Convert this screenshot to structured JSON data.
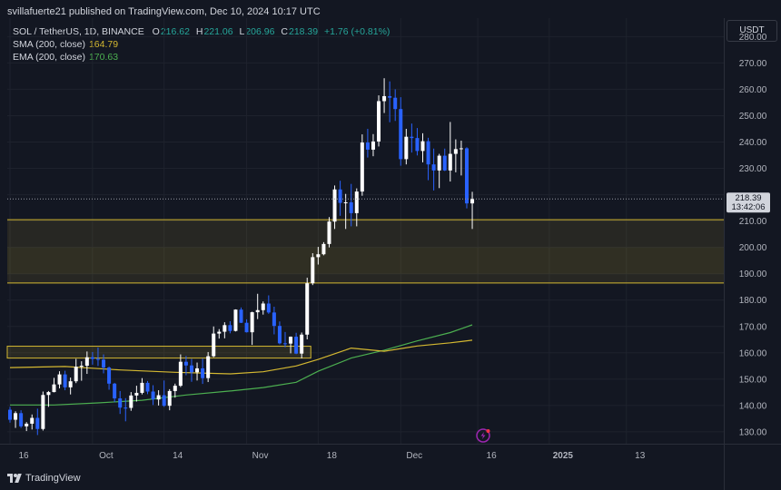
{
  "header": {
    "published_by": "svillafuerte21 published on TradingView.com, Dec 10, 2024 10:17 UTC"
  },
  "legend": {
    "symbol": "SOL / TetherUS, 1D, BINANCE",
    "open_label": "O",
    "open": "216.62",
    "high_label": "H",
    "high": "221.06",
    "low_label": "L",
    "low": "206.96",
    "close_label": "C",
    "close": "218.39",
    "change": "+1.76 (+0.81%)",
    "sma_label": "SMA (200, close)",
    "sma_value": "164.79",
    "ema_label": "EMA (200, close)",
    "ema_value": "170.63"
  },
  "currency_button": "USDT",
  "price_tag": {
    "price": "218.39",
    "countdown": "13:42:06"
  },
  "footer": {
    "brand": "TradingView"
  },
  "colors": {
    "background": "#131722",
    "up_candle": "#ffffff",
    "down_candle": "#2962ff",
    "sma": "#d4b831",
    "ema": "#4caf50",
    "zone_border": "#d4b831",
    "zone_fill": "rgba(212,184,49,0.10)",
    "alert_icon": "#9c27b0"
  },
  "chart_data": {
    "type": "candlestick",
    "interval": "1D",
    "y_axis": {
      "ticks": [
        130,
        140,
        150,
        160,
        170,
        180,
        190,
        200,
        210,
        220,
        230,
        240,
        250,
        260,
        270,
        280
      ],
      "ylim": [
        125.5,
        287
      ]
    },
    "x_axis": {
      "ticks": [
        "16",
        "Oct",
        "14",
        "Nov",
        "18",
        "Dec",
        "16",
        "2025",
        "13"
      ],
      "tick_index": [
        0,
        15,
        28,
        43,
        56,
        71,
        85,
        98,
        112
      ],
      "first_date": "2024-09-16"
    },
    "zones": [
      {
        "low": 186.5,
        "high": 210.5,
        "band_low": 190,
        "band_high": 200
      },
      {
        "low": 158,
        "high": 162.5
      }
    ],
    "ohlc": [
      [
        138.4,
        139.5,
        133.5,
        134.6
      ],
      [
        134.6,
        137.8,
        131.5,
        137.1
      ],
      [
        137.1,
        138.2,
        131.5,
        132.1
      ],
      [
        132.1,
        133.7,
        130.3,
        133.1
      ],
      [
        133.1,
        136.6,
        130.9,
        135.3
      ],
      [
        135.3,
        138.8,
        128.8,
        131.1
      ],
      [
        131.1,
        145.3,
        130.5,
        144.0
      ],
      [
        144.0,
        145.5,
        139.5,
        145.1
      ],
      [
        145.1,
        150.5,
        145.0,
        148.0
      ],
      [
        148.0,
        153.0,
        146.5,
        151.8
      ],
      [
        151.8,
        153.2,
        145.8,
        146.9
      ],
      [
        146.9,
        150.6,
        144.2,
        149.2
      ],
      [
        149.2,
        157.7,
        148.5,
        154.7
      ],
      [
        154.7,
        156.8,
        149.4,
        155.1
      ],
      [
        155.1,
        160.5,
        152.0,
        158.3
      ],
      [
        158.3,
        160.3,
        155.5,
        157.7
      ],
      [
        157.7,
        162.0,
        155.0,
        157.4
      ],
      [
        157.4,
        159.4,
        152.2,
        154.4
      ],
      [
        154.4,
        154.8,
        146.0,
        148.3
      ],
      [
        148.3,
        148.6,
        141.3,
        142.7
      ],
      [
        142.7,
        145.5,
        136.8,
        139.2
      ],
      [
        139.2,
        142.8,
        134.0,
        139.1
      ],
      [
        139.1,
        145.1,
        138.0,
        143.8
      ],
      [
        143.8,
        147.5,
        141.5,
        144.8
      ],
      [
        144.8,
        150.4,
        144.2,
        148.6
      ],
      [
        148.6,
        149.3,
        144.3,
        145.3
      ],
      [
        145.3,
        147.7,
        140.2,
        142.3
      ],
      [
        142.3,
        145.8,
        140.0,
        143.9
      ],
      [
        143.9,
        149.5,
        139.5,
        139.9
      ],
      [
        139.9,
        146.2,
        138.2,
        145.5
      ],
      [
        145.5,
        148.3,
        143.0,
        147.5
      ],
      [
        147.5,
        159.4,
        147.0,
        156.6
      ],
      [
        156.6,
        158.8,
        151.5,
        155.2
      ],
      [
        155.2,
        157.7,
        149.0,
        152.6
      ],
      [
        152.6,
        156.3,
        149.5,
        154.1
      ],
      [
        154.1,
        157.8,
        148.2,
        150.4
      ],
      [
        150.4,
        160.3,
        148.9,
        158.7
      ],
      [
        158.7,
        170.0,
        158.3,
        167.3
      ],
      [
        167.3,
        169.0,
        165.4,
        168.0
      ],
      [
        168.0,
        171.6,
        165.5,
        170.5
      ],
      [
        170.5,
        172.0,
        167.4,
        168.3
      ],
      [
        168.3,
        176.5,
        168.1,
        176.4
      ],
      [
        176.4,
        177.2,
        171.3,
        171.4
      ],
      [
        171.4,
        172.7,
        167.7,
        167.8
      ],
      [
        167.8,
        175.6,
        163.0,
        175.4
      ],
      [
        175.4,
        182.4,
        172.8,
        176.2
      ],
      [
        176.2,
        179.5,
        174.5,
        178.7
      ],
      [
        178.7,
        181.8,
        174.8,
        175.3
      ],
      [
        175.3,
        177.5,
        167.0,
        170.2
      ],
      [
        170.2,
        171.9,
        163.2,
        163.6
      ],
      [
        163.6,
        167.9,
        162.1,
        163.5
      ],
      [
        163.5,
        166.2,
        159.8,
        166.1
      ],
      [
        166.1,
        167.6,
        159.5,
        159.7
      ],
      [
        159.7,
        167.7,
        157.9,
        166.9
      ],
      [
        166.9,
        188.5,
        165.1,
        186.4
      ],
      [
        186.4,
        197.8,
        185.7,
        196.3
      ],
      [
        196.3,
        200.2,
        193.5,
        197.4
      ],
      [
        197.4,
        202.0,
        197.0,
        201.3
      ],
      [
        201.3,
        211.5,
        200.0,
        209.8
      ],
      [
        209.8,
        223.5,
        207.0,
        222.0
      ],
      [
        222.0,
        225.3,
        212.0,
        216.9
      ],
      [
        216.9,
        220.3,
        207.0,
        217.1
      ],
      [
        217.1,
        224.1,
        208.0,
        213.0
      ],
      [
        213.0,
        222.4,
        208.0,
        221.2
      ],
      [
        221.2,
        242.9,
        219.6,
        239.8
      ],
      [
        239.8,
        245.0,
        234.1,
        237.1
      ],
      [
        237.1,
        243.0,
        234.6,
        240.2
      ],
      [
        240.2,
        257.7,
        238.3,
        255.5
      ],
      [
        255.5,
        264.2,
        251.0,
        257.4
      ],
      [
        257.4,
        263.0,
        247.5,
        256.8
      ],
      [
        256.8,
        260.0,
        248.0,
        252.5
      ],
      [
        252.5,
        257.0,
        231.0,
        233.5
      ],
      [
        233.5,
        245.0,
        231.5,
        242.0
      ],
      [
        242.0,
        247.0,
        236.0,
        241.5
      ],
      [
        241.5,
        245.3,
        234.9,
        236.6
      ],
      [
        236.6,
        243.3,
        232.3,
        240.3
      ],
      [
        240.3,
        241.6,
        225.5,
        231.5
      ],
      [
        231.5,
        237.5,
        221.6,
        229.2
      ],
      [
        229.2,
        235.5,
        222.5,
        234.8
      ],
      [
        234.8,
        237.5,
        229.0,
        229.2
      ],
      [
        229.2,
        247.6,
        225.0,
        235.5
      ],
      [
        235.5,
        241.0,
        228.5,
        237.3
      ],
      [
        237.3,
        240.5,
        227.3,
        237.6
      ],
      [
        237.6,
        238.0,
        214.8,
        216.7
      ],
      [
        216.7,
        221.1,
        207.0,
        218.4
      ]
    ],
    "sma_200": [
      [
        0,
        154.4
      ],
      [
        10,
        154.8
      ],
      [
        20,
        153.5
      ],
      [
        30,
        152.6
      ],
      [
        40,
        152.0
      ],
      [
        46,
        152.8
      ],
      [
        52,
        155.0
      ],
      [
        56,
        157.5
      ],
      [
        62,
        161.8
      ],
      [
        68,
        160.6
      ],
      [
        74,
        162.6
      ],
      [
        80,
        163.8
      ],
      [
        84,
        164.8
      ]
    ],
    "ema_200": [
      [
        0,
        140.2
      ],
      [
        8,
        140.2
      ],
      [
        16,
        141.0
      ],
      [
        24,
        142.0
      ],
      [
        32,
        144.0
      ],
      [
        40,
        145.5
      ],
      [
        46,
        146.8
      ],
      [
        52,
        148.8
      ],
      [
        56,
        153.0
      ],
      [
        62,
        158.0
      ],
      [
        68,
        161.0
      ],
      [
        74,
        164.5
      ],
      [
        80,
        167.7
      ],
      [
        84,
        170.6
      ]
    ]
  }
}
